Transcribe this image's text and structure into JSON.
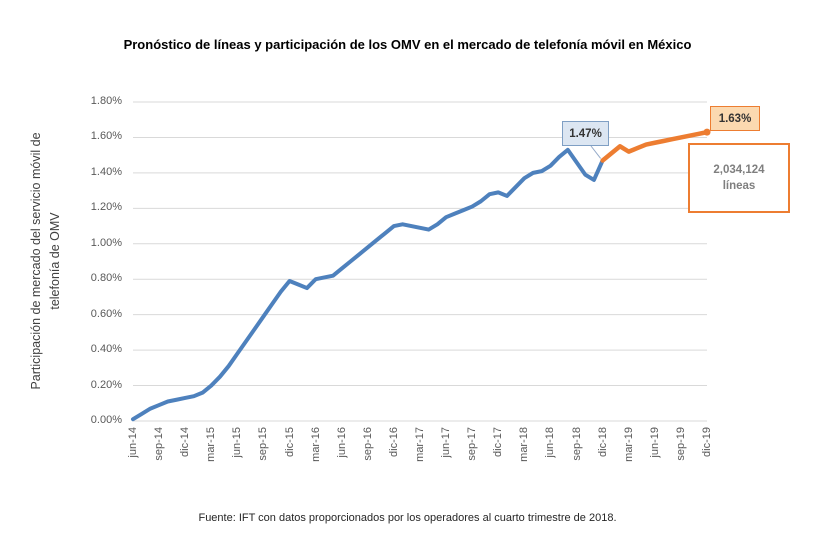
{
  "title": "Pronóstico de líneas y participación de los OMV en el mercado de telefonía móvil en México",
  "source_note": "Fuente: IFT con datos proporcionados por los operadores al cuarto trimestre de 2018.",
  "chart_data": {
    "type": "line",
    "title": "Pronóstico de líneas y participación de los OMV en el mercado de telefonía móvil en México",
    "xlabel": "",
    "ylabel": "Participación de mercado del servicio móvil de telefonía de OMV",
    "ylabel_lines": [
      "Participación de mercado del servicio móvil de",
      "telefonía de OMV"
    ],
    "ylim": [
      0,
      1.8
    ],
    "ytick_step": 0.2,
    "ytick_labels": [
      "0.00%",
      "0.20%",
      "0.40%",
      "0.60%",
      "0.80%",
      "1.00%",
      "1.20%",
      "1.40%",
      "1.60%",
      "1.80%"
    ],
    "xtick_labels": [
      "jun-14",
      "sep-14",
      "dic-14",
      "mar-15",
      "jun-15",
      "sep-15",
      "dic-15",
      "mar-16",
      "jun-16",
      "sep-16",
      "dic-16",
      "mar-17",
      "jun-17",
      "sep-17",
      "dic-17",
      "mar-18",
      "jun-18",
      "sep-18",
      "dic-18",
      "mar-19",
      "jun-19",
      "sep-19",
      "dic-19"
    ],
    "x_months": [
      "jun-14",
      "jul-14",
      "ago-14",
      "sep-14",
      "oct-14",
      "nov-14",
      "dic-14",
      "ene-15",
      "feb-15",
      "mar-15",
      "abr-15",
      "may-15",
      "jun-15",
      "jul-15",
      "ago-15",
      "sep-15",
      "oct-15",
      "nov-15",
      "dic-15",
      "ene-16",
      "feb-16",
      "mar-16",
      "abr-16",
      "may-16",
      "jun-16",
      "jul-16",
      "ago-16",
      "sep-16",
      "oct-16",
      "nov-16",
      "dic-16",
      "ene-17",
      "feb-17",
      "mar-17",
      "abr-17",
      "may-17",
      "jun-17",
      "jul-17",
      "ago-17",
      "sep-17",
      "oct-17",
      "nov-17",
      "dic-17",
      "ene-18",
      "feb-18",
      "mar-18",
      "abr-18",
      "may-18",
      "jun-18",
      "jul-18",
      "ago-18",
      "sep-18",
      "oct-18",
      "nov-18",
      "dic-18",
      "ene-19",
      "feb-19",
      "mar-19",
      "abr-19",
      "may-19",
      "jun-19",
      "jul-19",
      "ago-19",
      "sep-19",
      "oct-19",
      "nov-19",
      "dic-19"
    ],
    "grid": "horizontal",
    "legend": "none",
    "series": [
      {
        "id": "historical-omv-share",
        "color": "#4E81BD",
        "start_index": 0,
        "values": [
          0.01,
          0.04,
          0.07,
          0.09,
          0.11,
          0.12,
          0.13,
          0.14,
          0.16,
          0.2,
          0.25,
          0.31,
          0.38,
          0.45,
          0.52,
          0.59,
          0.66,
          0.73,
          0.79,
          0.77,
          0.75,
          0.8,
          0.81,
          0.82,
          0.86,
          0.9,
          0.94,
          0.98,
          1.02,
          1.06,
          1.1,
          1.11,
          1.1,
          1.09,
          1.08,
          1.11,
          1.15,
          1.17,
          1.19,
          1.21,
          1.24,
          1.28,
          1.29,
          1.27,
          1.32,
          1.37,
          1.4,
          1.41,
          1.44,
          1.49,
          1.53,
          1.46,
          1.39,
          1.36,
          1.47
        ]
      },
      {
        "id": "forecast-omv-share",
        "color": "#ED7D31",
        "start_index": 54,
        "values": [
          1.47,
          1.51,
          1.55,
          1.52,
          1.54,
          1.56,
          1.57,
          1.58,
          1.59,
          1.6,
          1.61,
          1.62,
          1.63
        ]
      }
    ],
    "annotations": [
      {
        "id": "callout-dic-18",
        "label": "1.47%",
        "month": "dic-18",
        "value": 1.47
      },
      {
        "id": "callout-dic-19",
        "label": "1.63%",
        "month": "dic-19",
        "value": 1.63
      },
      {
        "id": "forecast-lines-box",
        "label": "2,034,124 líneas",
        "lines": [
          "2,034,124",
          "líneas"
        ]
      }
    ],
    "colors": {
      "historical": "#4E81BD",
      "forecast": "#ED7D31",
      "grid": "#D9D9D9",
      "tick_text": "#595959",
      "callout_blue_fill": "#DCE6F2",
      "callout_blue_border": "#7F9FC4",
      "callout_orange_fill": "#FBD9B0",
      "callout_orange_border": "#ED7D31"
    }
  }
}
